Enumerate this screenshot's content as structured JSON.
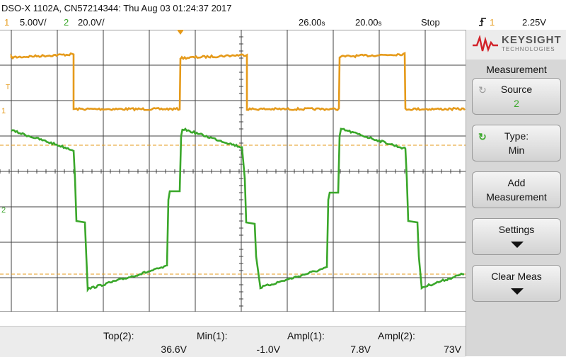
{
  "header": {
    "device": "DSO-X 1102A, CN57214344: Thu Aug 03 01:24:37 2017",
    "ch1_num": "1",
    "ch1_scale": "5.00V/",
    "ch2_num": "2",
    "ch2_scale": "20.0V/",
    "time_pos": "26.00",
    "time_pos_unit": "s",
    "time_scale": "20.00",
    "time_scale_unit": "s",
    "run_state": "Stop",
    "trigger_icon": "rising-edge-trigger-icon",
    "trigger_source": "1",
    "trigger_level": "2.25V"
  },
  "waveform": {
    "markers": {
      "t": "T",
      "ch1": "1",
      "ch2": "2"
    },
    "colors": {
      "ch1": "#e59a1a",
      "ch2": "#3aa72a",
      "grid": "#404040",
      "background": "#ffffff"
    }
  },
  "panel": {
    "brand": "KEYSIGHT",
    "brand_sub": "TECHNOLOGIES",
    "title": "Measurement",
    "softkeys": [
      {
        "label": "Source",
        "value": "2",
        "icon": "rotate-knob-icon"
      },
      {
        "label": "Type:",
        "value": "Min",
        "icon": "green-knob-icon"
      },
      {
        "label": "Add",
        "value": "Measurement"
      },
      {
        "label": "Settings",
        "icon": "down-arrow-icon"
      },
      {
        "label": "Clear Meas",
        "icon": "down-arrow-icon"
      }
    ]
  },
  "measurements": [
    {
      "label": "Top(2):",
      "name": "Top",
      "src": "2",
      "value": "36.6V"
    },
    {
      "label": "Min(1):",
      "name": "Min",
      "src": "1",
      "value": "-1.0V"
    },
    {
      "label": "Ampl(1):",
      "name": "Ampl",
      "src": "1",
      "value": "7.8V"
    },
    {
      "label": "Ampl(2):",
      "name": "Ampl",
      "src": "2",
      "value": "73V"
    }
  ]
}
